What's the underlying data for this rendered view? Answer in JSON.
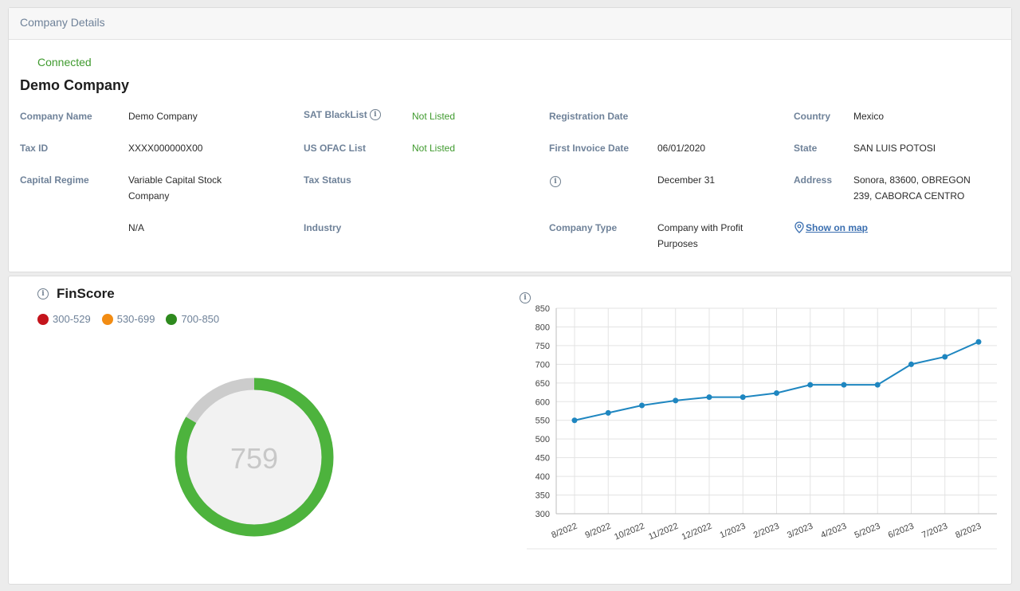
{
  "details": {
    "header": "Company Details",
    "status": "Connected",
    "company_title": "Demo Company",
    "labels": {
      "company_name": "Company Name",
      "tax_id": "Tax ID",
      "capital_regime": "Capital Regime",
      "sat_blacklist": "SAT BlackList",
      "us_ofac": "US OFAC List",
      "tax_status": "Tax Status",
      "industry": "Industry",
      "registration_date": "Registration Date",
      "first_invoice_date": "First Invoice Date",
      "company_type": "Company Type",
      "country": "Country",
      "state": "State",
      "address": "Address"
    },
    "values": {
      "company_name": "Demo Company",
      "tax_id": "XXXX000000X00",
      "capital_regime_line1": "Variable Capital Stock",
      "capital_regime_line2": "Company",
      "na": "N/A",
      "sat_blacklist": "Not Listed",
      "us_ofac": "Not Listed",
      "first_invoice_date": "06/01/2020",
      "fiscal_year_end": "December 31",
      "company_type_line1": "Company with Profit",
      "company_type_line2": "Purposes",
      "country": "Mexico",
      "state": "SAN LUIS POTOSI",
      "address_line1": "Sonora, 83600, OBREGON",
      "address_line2": "239, CABORCA CENTRO"
    },
    "show_on_map": "Show on map",
    "info_glyph": "i"
  },
  "finscore": {
    "title": "FinScore",
    "info_glyph": "i",
    "legend": [
      {
        "label": "300-529",
        "color": "#c4141c"
      },
      {
        "label": "530-699",
        "color": "#f28c13"
      },
      {
        "label": "700-850",
        "color": "#2e8a1e"
      }
    ],
    "score": 759,
    "score_text": "759",
    "scale_min": 300,
    "scale_max": 850,
    "gauge_color": "#4db33d",
    "gauge_track_color": "#cccccc"
  },
  "chart_data": {
    "type": "line",
    "categories": [
      "8/2022",
      "9/2022",
      "10/2022",
      "11/2022",
      "12/2022",
      "1/2023",
      "2/2023",
      "3/2023",
      "4/2023",
      "5/2023",
      "6/2023",
      "7/2023",
      "8/2023"
    ],
    "series": [
      {
        "values": [
          550,
          570,
          590,
          603,
          612,
          612,
          623,
          645,
          645,
          645,
          700,
          720,
          760
        ]
      }
    ],
    "ylim": [
      300,
      850
    ],
    "yticks": [
      300,
      350,
      400,
      450,
      500,
      550,
      600,
      650,
      700,
      750,
      800,
      850
    ],
    "grid": true,
    "line_color": "#1e86c0",
    "info_glyph": "i"
  }
}
